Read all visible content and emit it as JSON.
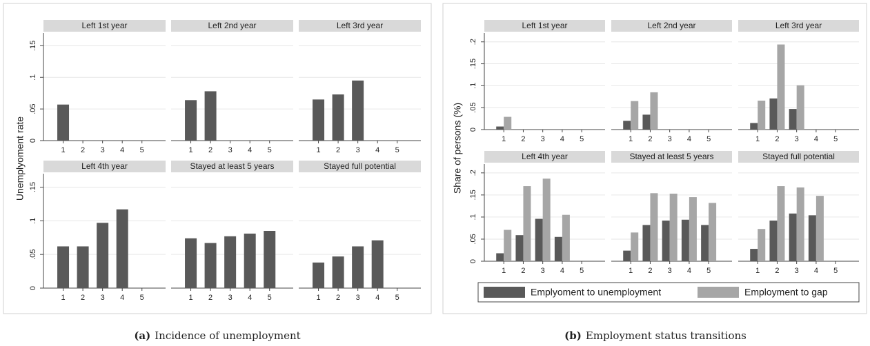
{
  "chart_data": [
    {
      "type": "bar",
      "ylabel": "Unemplyoment rate",
      "caption_label": "(a)",
      "caption": "Incidence of unemployment",
      "categories": [
        "1",
        "2",
        "3",
        "4",
        "5"
      ],
      "series": [
        {
          "color": "#595959"
        }
      ],
      "ylim": [
        0,
        0.17
      ],
      "yticks": [
        0,
        {
          "value": 0.05,
          "label": ".05"
        },
        {
          "value": 0.1,
          "label": ".1"
        },
        {
          "value": 0.15,
          "label": ".15"
        }
      ],
      "grid": true,
      "panels": [
        {
          "title": "Left 1st year",
          "values": [
            [
              0.057,
              null,
              null,
              null,
              null
            ]
          ]
        },
        {
          "title": "Left 2nd year",
          "values": [
            [
              0.064,
              0.078,
              null,
              null,
              null
            ]
          ]
        },
        {
          "title": "Left 3rd year",
          "values": [
            [
              0.065,
              0.073,
              0.095,
              null,
              null
            ]
          ]
        },
        {
          "title": "Left 4th year",
          "values": [
            [
              0.062,
              0.062,
              0.097,
              0.117,
              null
            ]
          ]
        },
        {
          "title": "Stayed at least 5 years",
          "values": [
            [
              0.074,
              0.067,
              0.077,
              0.081,
              0.085
            ]
          ]
        },
        {
          "title": "Stayed full potential",
          "values": [
            [
              0.038,
              0.047,
              0.062,
              0.071,
              null
            ]
          ]
        }
      ]
    },
    {
      "type": "bar",
      "ylabel": "Share of persons (%)",
      "caption_label": "(b)",
      "caption": "Employment status transitions",
      "categories": [
        "1",
        "2",
        "3",
        "4",
        "5"
      ],
      "series": [
        {
          "name": "Emplyoment to unemployment",
          "color": "#595959"
        },
        {
          "name": "Employment to gap",
          "color": "#a6a6a6"
        }
      ],
      "ylim": [
        0,
        0.22
      ],
      "yticks": [
        0,
        {
          "value": 0.05,
          "label": ".05"
        },
        {
          "value": 0.1,
          "label": ".1"
        },
        {
          "value": 0.15,
          "label": ".15"
        },
        {
          "value": 0.2,
          "label": ".2"
        }
      ],
      "grid": true,
      "panels": [
        {
          "title": "Left 1st year",
          "values": [
            [
              0.007,
              null,
              null,
              null,
              null
            ],
            [
              0.029,
              null,
              null,
              null,
              null
            ]
          ]
        },
        {
          "title": "Left 2nd year",
          "values": [
            [
              0.02,
              0.034,
              null,
              null,
              null
            ],
            [
              0.065,
              0.085,
              null,
              null,
              null
            ]
          ]
        },
        {
          "title": "Left 3rd year",
          "values": [
            [
              0.015,
              0.071,
              0.047,
              null,
              null
            ],
            [
              0.066,
              0.194,
              0.101,
              null,
              null
            ]
          ]
        },
        {
          "title": "Left 4th year",
          "values": [
            [
              0.018,
              0.059,
              0.096,
              0.055,
              null
            ],
            [
              0.071,
              0.17,
              0.187,
              0.105,
              null
            ]
          ]
        },
        {
          "title": "Stayed at least 5 years",
          "values": [
            [
              0.024,
              0.082,
              0.092,
              0.094,
              0.082
            ],
            [
              0.065,
              0.154,
              0.153,
              0.145,
              0.132
            ]
          ]
        },
        {
          "title": "Stayed full potential",
          "values": [
            [
              0.028,
              0.092,
              0.108,
              0.104,
              null
            ],
            [
              0.073,
              0.17,
              0.167,
              0.148,
              null
            ]
          ]
        }
      ]
    }
  ]
}
